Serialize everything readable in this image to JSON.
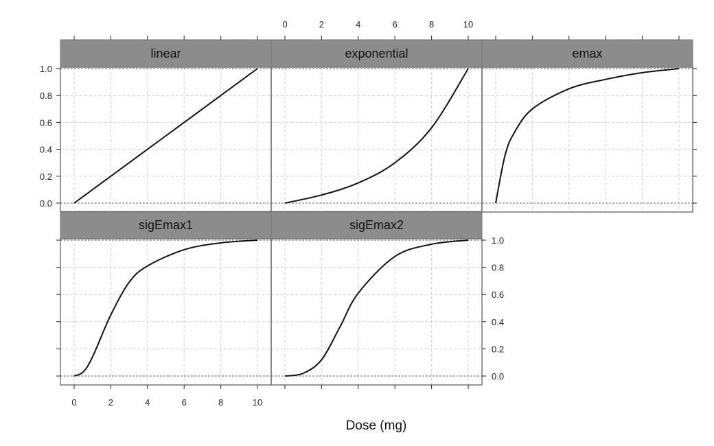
{
  "chart_data": {
    "type": "line",
    "layout": "trellis 3 columns x 2 rows",
    "xlabel": "Dose (mg)",
    "ylabel": "",
    "xlim": [
      0,
      10
    ],
    "ylim": [
      0,
      1
    ],
    "x_ticks": [
      0,
      2,
      4,
      6,
      8,
      10
    ],
    "y_ticks": [
      0.0,
      0.2,
      0.4,
      0.6,
      0.8,
      1.0
    ],
    "x_tick_labels": [
      "0",
      "2",
      "4",
      "6",
      "8",
      "10"
    ],
    "y_tick_labels": [
      "0.0",
      "0.2",
      "0.4",
      "0.6",
      "0.8",
      "1.0"
    ],
    "grid": true,
    "colors": {
      "strip": "#8c8c8c",
      "line": "#111111",
      "grid": "#d2d2d2",
      "ref_line": "#9a9a9a",
      "frame": "#777777"
    },
    "panels": [
      {
        "name": "linear",
        "x": [
          0,
          2,
          4,
          6,
          8,
          10
        ],
        "y": [
          0.0,
          0.2,
          0.4,
          0.6,
          0.8,
          1.0
        ]
      },
      {
        "name": "exponential",
        "x": [
          0,
          2,
          4,
          6,
          8,
          10
        ],
        "y": [
          0.0,
          0.06,
          0.15,
          0.3,
          0.56,
          1.0
        ]
      },
      {
        "name": "emax",
        "x": [
          0,
          0.5,
          1,
          2,
          4,
          6,
          8,
          10
        ],
        "y": [
          0.0,
          0.35,
          0.52,
          0.7,
          0.85,
          0.92,
          0.97,
          1.0
        ]
      },
      {
        "name": "sigEmax1",
        "x": [
          0,
          0.5,
          1,
          2,
          3,
          4,
          6,
          8,
          10
        ],
        "y": [
          0.0,
          0.03,
          0.14,
          0.45,
          0.69,
          0.81,
          0.93,
          0.98,
          1.0
        ]
      },
      {
        "name": "sigEmax2",
        "x": [
          0,
          1,
          2,
          3,
          4,
          6,
          8,
          10
        ],
        "y": [
          0.0,
          0.02,
          0.12,
          0.36,
          0.61,
          0.88,
          0.97,
          1.0
        ]
      }
    ]
  }
}
